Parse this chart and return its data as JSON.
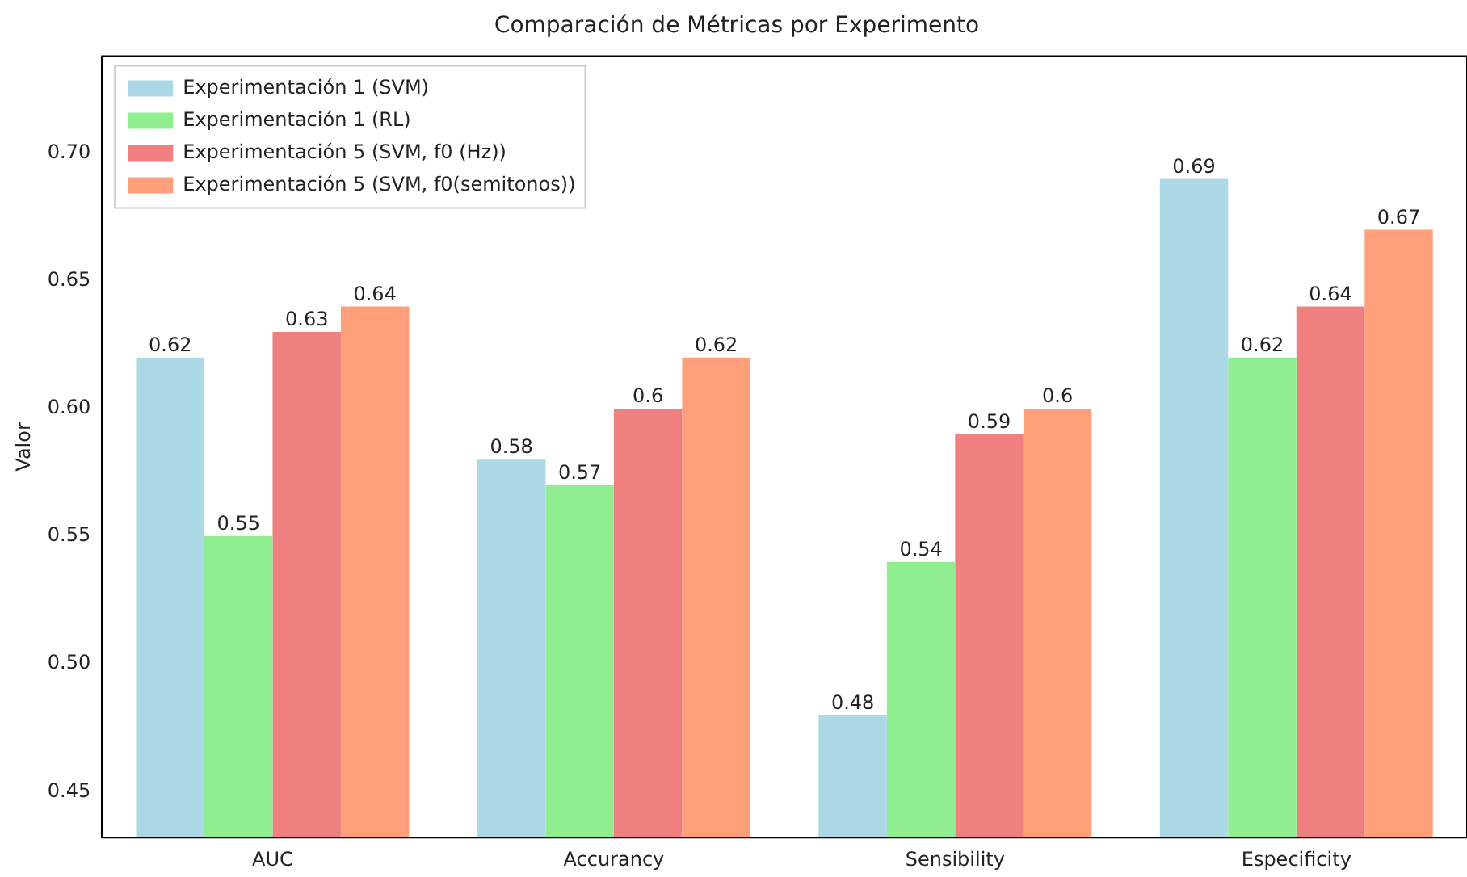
{
  "chart_data": {
    "type": "bar",
    "title": "Comparación de Métricas por Experimento",
    "ylabel": "Valor",
    "categories": [
      "AUC",
      "Accurancy",
      "Sensibility",
      "Especificity"
    ],
    "series": [
      {
        "name": "Experimentación 1 (SVM)",
        "color": "#add8e6",
        "values": [
          0.62,
          0.58,
          0.48,
          0.69
        ]
      },
      {
        "name": "Experimentación 1 (RL)",
        "color": "#90ee90",
        "values": [
          0.55,
          0.57,
          0.54,
          0.62
        ]
      },
      {
        "name": "Experimentación 5 (SVM, f0 (Hz))",
        "color": "#f08080",
        "values": [
          0.63,
          0.6,
          0.59,
          0.64
        ]
      },
      {
        "name": "Experimentación 5 (SVM, f0(semitonos))",
        "color": "#ffa07a",
        "values": [
          0.64,
          0.62,
          0.6,
          0.67
        ]
      }
    ],
    "ylim": [
      0.432,
      0.738
    ],
    "yticks": [
      0.45,
      {
        "value": 0.5,
        "label": "0.50"
      },
      0.55,
      {
        "value": 0.6,
        "label": "0.60"
      },
      0.65,
      {
        "value": 0.7,
        "label": "0.70"
      }
    ],
    "data_labels": true,
    "grid": false,
    "legend": "top left"
  }
}
